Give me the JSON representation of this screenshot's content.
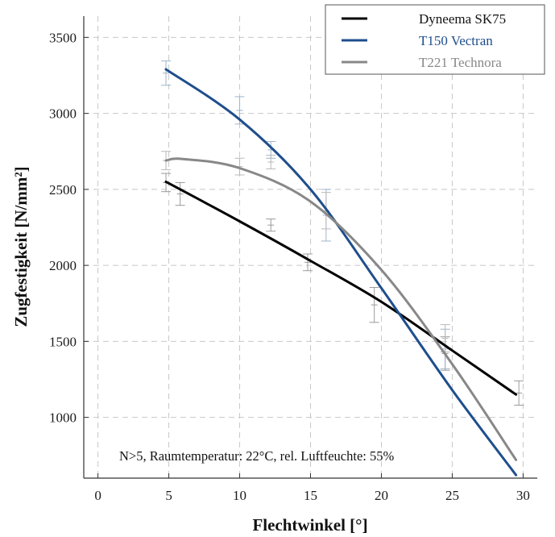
{
  "chart_data": {
    "type": "line",
    "title": "",
    "xlabel": "Flechtwinkel [°]",
    "ylabel": "Zugfestigkeit [N/mm²]",
    "xlim": [
      -1,
      31
    ],
    "ylim": [
      600,
      3640
    ],
    "xticks": [
      0,
      5,
      10,
      15,
      20,
      25,
      30
    ],
    "yticks": [
      1000,
      1500,
      2000,
      2500,
      3000,
      3500
    ],
    "grid": true,
    "legend_position": "top-right",
    "annotation": "N>5, Raumtemperatur: 22°C, rel. Luftfeuchte: 55%",
    "series": [
      {
        "name": "Dyneema SK75",
        "color": "#000000",
        "curve": [
          [
            4.8,
            2550
          ],
          [
            10,
            2290
          ],
          [
            15,
            2030
          ],
          [
            20,
            1760
          ],
          [
            25,
            1440
          ],
          [
            29.5,
            1150
          ]
        ],
        "points": [
          {
            "x": 4.8,
            "y": 2545,
            "err": 60
          },
          {
            "x": 5.8,
            "y": 2470,
            "err": 75
          },
          {
            "x": 12.2,
            "y": 2265,
            "err": 40
          },
          {
            "x": 14.8,
            "y": 2020,
            "err": 55
          },
          {
            "x": 19.5,
            "y": 1740,
            "err": 115
          },
          {
            "x": 24.5,
            "y": 1420,
            "err": 110
          },
          {
            "x": 29.7,
            "y": 1160,
            "err": 80
          }
        ]
      },
      {
        "name": "T150 Vectran",
        "color": "#1f4e8c",
        "curve": [
          [
            4.8,
            3290
          ],
          [
            10,
            2960
          ],
          [
            15,
            2500
          ],
          [
            20,
            1850
          ],
          [
            25,
            1180
          ],
          [
            29.5,
            620
          ]
        ],
        "points": [
          {
            "x": 4.8,
            "y": 3265,
            "err": 80
          },
          {
            "x": 10.0,
            "y": 3020,
            "err": 90
          },
          {
            "x": 12.2,
            "y": 2760,
            "err": 55
          },
          {
            "x": 16.1,
            "y": 2330,
            "err": 170
          },
          {
            "x": 24.5,
            "y": 1450,
            "err": 130
          }
        ]
      },
      {
        "name": "T221 Technora",
        "color": "#888888",
        "curve": [
          [
            4.8,
            2690
          ],
          [
            6,
            2700
          ],
          [
            10,
            2640
          ],
          [
            15,
            2420
          ],
          [
            20,
            1970
          ],
          [
            25,
            1350
          ],
          [
            29.5,
            720
          ]
        ],
        "points": [
          {
            "x": 4.8,
            "y": 2690,
            "err": 60
          },
          {
            "x": 10.0,
            "y": 2650,
            "err": 55
          },
          {
            "x": 12.2,
            "y": 2680,
            "err": 45
          },
          {
            "x": 16.1,
            "y": 2360,
            "err": 120
          },
          {
            "x": 24.5,
            "y": 1520,
            "err": 90
          }
        ]
      }
    ]
  }
}
